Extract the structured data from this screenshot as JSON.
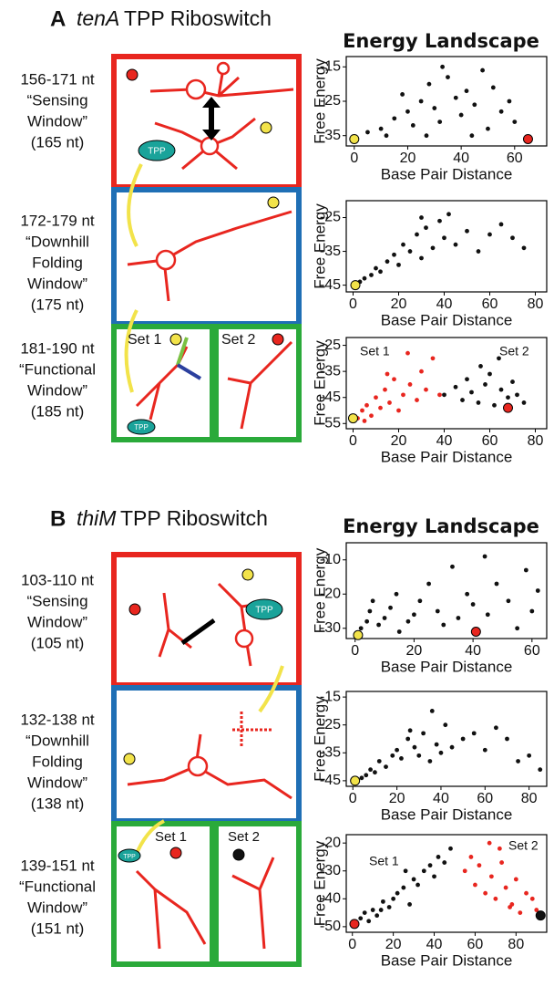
{
  "panels": [
    {
      "label": "A",
      "gene": "tenA",
      "title": "TPP Riboswitch",
      "landscape": "Energy Landscape",
      "windows": [
        [
          "156-171 nt",
          "“Sensing",
          "Window”",
          "(165 nt)"
        ],
        [
          "172-179 nt",
          "“Downhill",
          "Folding",
          "Window”",
          "(175 nt)"
        ],
        [
          "181-190 nt",
          "“Functional",
          "Window”",
          "(185 nt)"
        ]
      ],
      "diagram_labels": [
        "TPP",
        "Set 1",
        "Set 2",
        "TPP"
      ]
    },
    {
      "label": "B",
      "gene": "thiM",
      "title": "TPP Riboswitch",
      "landscape": "Energy Landscape",
      "windows": [
        [
          "103-110 nt",
          "“Sensing",
          "Window”",
          "(105 nt)"
        ],
        [
          "132-138 nt",
          "“Downhill",
          "Folding",
          "Window”",
          "(138 nt)"
        ],
        [
          "139-151 nt",
          "“Functional",
          "Window”",
          "(151 nt)"
        ]
      ],
      "diagram_labels": [
        "TPP",
        "Set 1",
        "Set 2",
        "TPP"
      ]
    }
  ],
  "chart_data": [
    {
      "type": "scatter",
      "xlabel": "Base Pair Distance",
      "ylabel": "Free Energy",
      "xlim": [
        -3,
        72
      ],
      "ylim": [
        -38,
        -12
      ],
      "xticks": [
        0,
        20,
        40,
        60
      ],
      "yticks": [
        -15,
        -25,
        -35
      ],
      "series": [
        {
          "color": "#111111",
          "x": [
            5,
            10,
            15,
            20,
            22,
            25,
            28,
            30,
            32,
            35,
            38,
            40,
            42,
            45,
            48,
            50,
            52,
            55,
            58,
            60,
            12,
            18,
            27,
            33,
            44
          ],
          "values": [
            -34,
            -33,
            -30,
            -28,
            -32,
            -25,
            -20,
            -27,
            -31,
            -18,
            -24,
            -29,
            -22,
            -26,
            -16,
            -33,
            -21,
            -28,
            -25,
            -31,
            -35,
            -23,
            -35,
            -15,
            -35
          ]
        },
        {
          "color": "#f2e34a",
          "x": [
            0
          ],
          "values": [
            -36
          ]
        },
        {
          "color": "#e8261f",
          "x": [
            65
          ],
          "values": [
            -36
          ]
        }
      ]
    },
    {
      "type": "scatter",
      "xlabel": "Base Pair Distance",
      "ylabel": "Free Energy",
      "xlim": [
        -3,
        85
      ],
      "ylim": [
        -47,
        -20
      ],
      "xticks": [
        0,
        20,
        40,
        60,
        80
      ],
      "yticks": [
        -25,
        -35,
        -45
      ],
      "series": [
        {
          "color": "#111111",
          "x": [
            3,
            5,
            8,
            10,
            12,
            15,
            18,
            20,
            22,
            25,
            28,
            30,
            32,
            35,
            38,
            40,
            45,
            50,
            55,
            60,
            65,
            70,
            75,
            42,
            30
          ],
          "values": [
            -44,
            -43,
            -42,
            -40,
            -41,
            -38,
            -36,
            -39,
            -33,
            -35,
            -30,
            -37,
            -28,
            -34,
            -26,
            -31,
            -33,
            -29,
            -35,
            -30,
            -27,
            -31,
            -34,
            -24,
            -25
          ]
        },
        {
          "color": "#f2e34a",
          "x": [
            1
          ],
          "values": [
            -45
          ]
        }
      ]
    },
    {
      "type": "scatter",
      "xlabel": "Base Pair Distance",
      "ylabel": "Free Energy",
      "xlim": [
        -3,
        85
      ],
      "ylim": [
        -57,
        -22
      ],
      "xticks": [
        0,
        20,
        40,
        60,
        80
      ],
      "yticks": [
        -25,
        -35,
        -45,
        -55
      ],
      "annotations": [
        "Set 1",
        "Set 2"
      ],
      "series": [
        {
          "color": "#e8261f",
          "x": [
            2,
            4,
            6,
            8,
            10,
            12,
            14,
            16,
            18,
            20,
            22,
            25,
            28,
            30,
            32,
            35,
            38,
            5,
            15,
            24
          ],
          "values": [
            -53,
            -50,
            -48,
            -52,
            -45,
            -49,
            -42,
            -47,
            -38,
            -50,
            -44,
            -40,
            -46,
            -35,
            -42,
            -30,
            -44,
            -54,
            -36,
            -28
          ]
        },
        {
          "color": "#111111",
          "x": [
            40,
            45,
            48,
            50,
            52,
            55,
            58,
            60,
            62,
            65,
            68,
            70,
            72,
            75,
            56,
            64
          ],
          "values": [
            -44,
            -41,
            -46,
            -38,
            -43,
            -47,
            -40,
            -36,
            -48,
            -42,
            -45,
            -39,
            -44,
            -47,
            -33,
            -30
          ]
        },
        {
          "color": "#f2e34a",
          "x": [
            0
          ],
          "values": [
            -53
          ]
        },
        {
          "color": "#e8261f",
          "x": [
            68
          ],
          "values": [
            -49
          ]
        }
      ]
    },
    {
      "type": "scatter",
      "xlabel": "Base Pair Distance",
      "ylabel": "Free Energy",
      "xlim": [
        -3,
        65
      ],
      "ylim": [
        -33,
        -5
      ],
      "xticks": [
        0,
        20,
        40,
        60
      ],
      "yticks": [
        -10,
        -20,
        -30
      ],
      "series": [
        {
          "color": "#111111",
          "x": [
            2,
            4,
            5,
            6,
            8,
            10,
            12,
            14,
            15,
            18,
            20,
            22,
            25,
            28,
            30,
            35,
            38,
            40,
            45,
            48,
            52,
            55,
            58,
            60,
            62,
            44,
            33
          ],
          "values": [
            -30,
            -28,
            -25,
            -22,
            -29,
            -27,
            -24,
            -20,
            -31,
            -28,
            -26,
            -22,
            -17,
            -25,
            -29,
            -27,
            -20,
            -23,
            -26,
            -17,
            -22,
            -30,
            -13,
            -25,
            -19,
            -9,
            -12
          ]
        },
        {
          "color": "#f2e34a",
          "x": [
            1
          ],
          "values": [
            -32
          ]
        },
        {
          "color": "#e8261f",
          "x": [
            41
          ],
          "values": [
            -31
          ]
        }
      ]
    },
    {
      "type": "scatter",
      "xlabel": "Base Pair Distance",
      "ylabel": "Free Energy",
      "xlim": [
        -3,
        88
      ],
      "ylim": [
        -47,
        -13
      ],
      "xticks": [
        0,
        20,
        40,
        60,
        80
      ],
      "yticks": [
        -15,
        -25,
        -35,
        -45
      ],
      "series": [
        {
          "color": "#111111",
          "x": [
            2,
            4,
            6,
            8,
            10,
            12,
            15,
            18,
            20,
            22,
            25,
            28,
            30,
            32,
            35,
            38,
            40,
            42,
            45,
            50,
            55,
            60,
            65,
            70,
            75,
            80,
            85,
            36,
            26
          ],
          "values": [
            -45,
            -44,
            -43,
            -41,
            -42,
            -38,
            -40,
            -36,
            -34,
            -37,
            -30,
            -33,
            -36,
            -28,
            -38,
            -32,
            -35,
            -25,
            -33,
            -30,
            -28,
            -34,
            -26,
            -30,
            -38,
            -36,
            -41,
            -20,
            -27
          ]
        },
        {
          "color": "#f2e34a",
          "x": [
            1
          ],
          "values": [
            -45
          ]
        }
      ]
    },
    {
      "type": "scatter",
      "xlabel": "Base Pair Distance",
      "ylabel": "Free Energy",
      "xlim": [
        -3,
        95
      ],
      "ylim": [
        -52,
        -17
      ],
      "xticks": [
        0,
        20,
        40,
        60,
        80
      ],
      "yticks": [
        -20,
        -30,
        -40,
        -50
      ],
      "annotations": [
        "Set 1",
        "Set 2"
      ],
      "series": [
        {
          "color": "#111111",
          "x": [
            2,
            4,
            6,
            8,
            10,
            12,
            15,
            18,
            20,
            22,
            25,
            28,
            30,
            32,
            35,
            38,
            40,
            42,
            45,
            48,
            26,
            14
          ],
          "values": [
            -49,
            -47,
            -45,
            -48,
            -44,
            -46,
            -41,
            -43,
            -40,
            -38,
            -36,
            -42,
            -33,
            -35,
            -30,
            -28,
            -32,
            -25,
            -27,
            -22,
            -30,
            -44
          ]
        },
        {
          "color": "#e8261f",
          "x": [
            55,
            58,
            60,
            62,
            65,
            68,
            70,
            72,
            75,
            78,
            80,
            82,
            85,
            88,
            90,
            67,
            73,
            77
          ],
          "values": [
            -30,
            -25,
            -35,
            -28,
            -38,
            -32,
            -40,
            -22,
            -36,
            -42,
            -33,
            -45,
            -38,
            -40,
            -44,
            -20,
            -27,
            -43
          ]
        },
        {
          "color": "#e8261f",
          "x": [
            1
          ],
          "values": [
            -49
          ]
        },
        {
          "color": "#111111",
          "x": [
            92
          ],
          "values": [
            -46
          ]
        }
      ]
    }
  ]
}
